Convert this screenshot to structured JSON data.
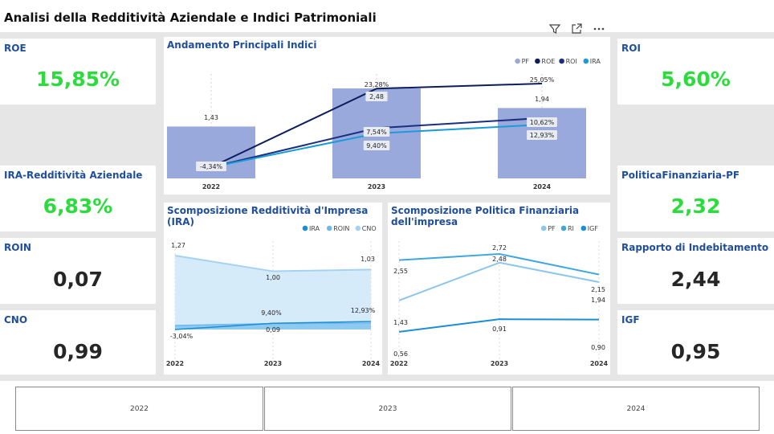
{
  "page": {
    "title": "Analisi della Redditività Aziendale e Indici Patrimoniali"
  },
  "kpis": {
    "roe": {
      "label": "ROE",
      "value": "15,85%"
    },
    "ira": {
      "label": "IRA-Redditività Aziendale",
      "value": "6,83%"
    },
    "roin": {
      "label": "ROIN",
      "value": "0,07"
    },
    "cno": {
      "label": "CNO",
      "value": "0,99"
    },
    "roi": {
      "label": "ROI",
      "value": "5,60%"
    },
    "pf": {
      "label": "PoliticaFinanziaria-PF",
      "value": "2,32"
    },
    "indebitamento": {
      "label": "Rapporto di Indebitamento",
      "value": "2,44"
    },
    "igf": {
      "label": "IGF",
      "value": "0,95"
    }
  },
  "toolbar": {
    "icons": [
      "filter-icon",
      "focus-mode-icon",
      "more-options-icon"
    ]
  },
  "chart_data": [
    {
      "type": "bar",
      "title": "Andamento Principali Indici",
      "categories": [
        "2022",
        "2023",
        "2024"
      ],
      "bar_series": {
        "name": "PF",
        "values": [
          1.43,
          2.48,
          1.94
        ],
        "labels": [
          "1,43",
          "2,48",
          "1,94"
        ],
        "color": "#9aa9dc"
      },
      "line_series": [
        {
          "name": "ROE",
          "values": [
            -4.34,
            23.28,
            25.05
          ],
          "labels": [
            "-4,34%",
            "23,28%",
            "25,05%"
          ],
          "color": "#0d1e5c"
        },
        {
          "name": "ROI",
          "values": [
            -4.34,
            9.4,
            12.93
          ],
          "labels": [
            "",
            "9,40%",
            "12,93%"
          ],
          "color": "#1a2f80"
        },
        {
          "name": "IRA",
          "values": [
            -4.34,
            7.54,
            10.62
          ],
          "labels": [
            "",
            "7,54%",
            "10,62%"
          ],
          "color": "#1a9ad9"
        }
      ],
      "legend": [
        "PF",
        "ROE",
        "ROI",
        "IRA"
      ],
      "legend_position": "top-right"
    },
    {
      "type": "area",
      "title": "Scomposizione Redditività d'Impresa (IRA)",
      "categories": [
        "2022",
        "2023",
        "2024"
      ],
      "series": [
        {
          "name": "IRA",
          "values": [
            -3.04,
            9.4,
            12.93
          ],
          "labels": [
            "-3,04%",
            "9,40%",
            "12,93%"
          ],
          "color": "#1a8fd6"
        },
        {
          "name": "ROIN",
          "values": [
            0.05,
            0.09,
            0.1
          ],
          "labels": [
            "",
            "0,09",
            ""
          ],
          "color": "#6fb8ea"
        },
        {
          "name": "CNO",
          "values": [
            1.27,
            1.0,
            1.03
          ],
          "labels": [
            "1,27",
            "1,00",
            "1,03"
          ],
          "color": "#a6d2f2"
        }
      ],
      "legend": [
        "IRA",
        "ROIN",
        "CNO"
      ],
      "legend_position": "top-right"
    },
    {
      "type": "line",
      "title": "Scomposizione Politica Finanziaria dell'impresa",
      "categories": [
        "2022",
        "2023",
        "2024"
      ],
      "series": [
        {
          "name": "PF",
          "values": [
            1.43,
            2.48,
            1.94
          ],
          "labels": [
            "1,43",
            "2,48",
            "1,94"
          ],
          "color": "#8cc6ec"
        },
        {
          "name": "RI",
          "values": [
            2.55,
            2.72,
            2.15
          ],
          "labels": [
            "2,55",
            "2,72",
            "2,15"
          ],
          "color": "#3fa6e0"
        },
        {
          "name": "IGF",
          "values": [
            0.56,
            0.91,
            0.9
          ],
          "labels": [
            "0,56",
            "0,91",
            "0,90"
          ],
          "color": "#1a8fd6"
        }
      ],
      "legend": [
        "PF",
        "RI",
        "IGF"
      ],
      "legend_position": "top-right"
    }
  ],
  "slicer": {
    "years": [
      "2022",
      "2023",
      "2024"
    ]
  }
}
